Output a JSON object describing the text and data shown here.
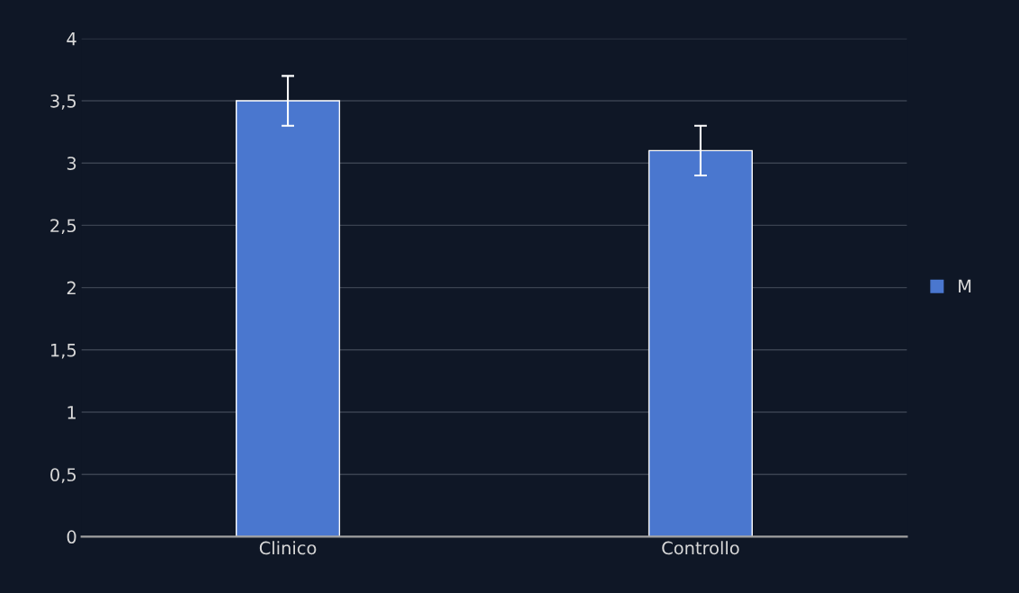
{
  "chart_data": {
    "type": "bar",
    "categories": [
      "Clinico",
      "Controllo"
    ],
    "series": [
      {
        "name": "M",
        "color": "#4a77cf",
        "values": [
          3.5,
          3.1
        ],
        "errors": [
          0.2,
          0.2
        ]
      }
    ],
    "ylim": [
      0,
      4
    ],
    "yticks": [
      0,
      {
        "value": 0.5,
        "label": "0,5"
      },
      1,
      {
        "value": 1.5,
        "label": "1,5"
      },
      2,
      {
        "value": 2.5,
        "label": "2,5"
      },
      3,
      {
        "value": 3.5,
        "label": "3,5"
      },
      4
    ],
    "grid": "y",
    "legend": "right"
  }
}
